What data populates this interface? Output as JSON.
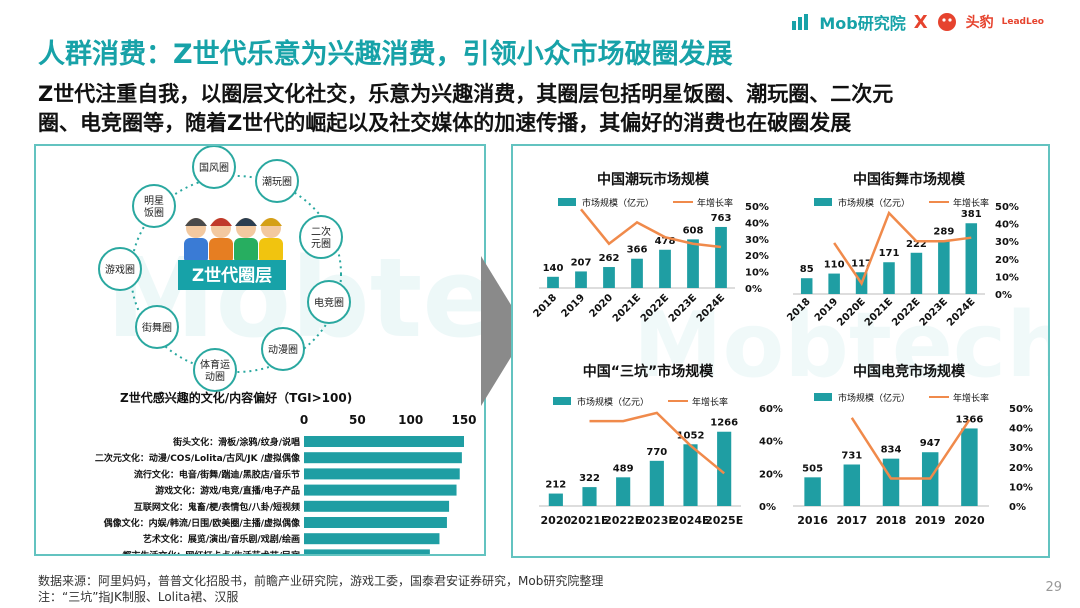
{
  "page": {
    "title": "人群消费：Z世代乐意为兴趣消费，引领小众市场破圈发展",
    "subtitle_line1": "Z世代注重自我，以圈层文化社交，乐意为兴趣消费，其圈层包括明星饭圈、潮玩圈、二次元",
    "subtitle_line2": "圈、电竞圈等，随着Z世代的崛起以及社交媒体的加速传播，其偏好的消费也在破圈发展",
    "brand_mob": "Mob研究院",
    "brand_x": "X",
    "brand_toutiao": "头豹",
    "brand_leadleo": "LeadLeo",
    "watermark": "Mobtech",
    "source": "数据来源：阿里妈妈，普普文化招股书，前瞻产业研究院，游戏工委，国泰君安证券研究，Mob研究院整理",
    "note": "注：“三坑”指JK制服、Lolita裙、汉服",
    "page_number": "29"
  },
  "colors": {
    "teal": "#17a2a8",
    "bar": "#1f9ea3",
    "line": "#f08a4b",
    "panel_border": "#63c3c0",
    "circle_border": "#2aa8a0"
  },
  "circles": {
    "center_label": "Z世代圈层",
    "items": [
      "国风圈",
      "潮玩圈",
      "二次元圈",
      "电竞圈",
      "动漫圈",
      "体育运动圈",
      "街舞圈",
      "游戏圈",
      "明星饭圈"
    ]
  },
  "chart_data": [
    {
      "type": "bar",
      "title": "Z世代感兴趣的文化/内容偏好（TGI>100)",
      "orientation": "horizontal",
      "categories": [
        "街头文化：滑板/涂鸦/纹身/说唱",
        "二次元文化：动漫/COS/Lolita/古风/JK /虚拟偶像",
        "流行文化：电音/街舞/踹迪/黑胶店/音乐节",
        "游戏文化：游戏/电竞/直播/电子产品",
        "互联网文化：鬼畜/梗/表情包/八卦/短视频",
        "偶像文化：内娱/韩流/日围/欧美圈/主播/虚拟偶像",
        "艺术文化：展览/演出/音乐剧/戏剧/绘画",
        "都市生活文化：网红打卡点/生活艺术节/民宿"
      ],
      "values": [
        150,
        148,
        146,
        143,
        136,
        134,
        127,
        118
      ],
      "xticks": [
        "0",
        "50",
        "100",
        "150"
      ],
      "xlim": [
        0,
        150
      ]
    },
    {
      "type": "bar+line",
      "title": "中国潮玩市场规模",
      "categories": [
        "2018",
        "2019",
        "2020",
        "2021E",
        "2022E",
        "2023E",
        "2024E"
      ],
      "series": [
        {
          "name": "市场规模（亿元）",
          "type": "bar",
          "values": [
            140,
            207,
            262,
            366,
            478,
            608,
            763
          ]
        },
        {
          "name": "年增长率",
          "type": "line",
          "axis": "right",
          "values": [
            null,
            48,
            27,
            40,
            31,
            27,
            25
          ]
        }
      ],
      "y2ticks": [
        "50%",
        "40%",
        "30%",
        "20%",
        "10%",
        "0%"
      ],
      "y2lim": [
        0,
        50
      ]
    },
    {
      "type": "bar+line",
      "title": "中国街舞市场规模",
      "categories": [
        "2018",
        "2019",
        "2020E",
        "2021E",
        "2022E",
        "2023E",
        "2024E"
      ],
      "series": [
        {
          "name": "市场规模（亿元）",
          "type": "bar",
          "values": [
            85,
            110,
            117,
            171,
            222,
            289,
            381
          ]
        },
        {
          "name": "年增长率",
          "type": "line",
          "axis": "right",
          "values": [
            null,
            29,
            6,
            46,
            30,
            30,
            32
          ]
        }
      ],
      "y2ticks": [
        "50%",
        "40%",
        "30%",
        "20%",
        "10%",
        "0%"
      ],
      "y2lim": [
        0,
        50
      ]
    },
    {
      "type": "bar+line",
      "title": "中国“三坑”市场规模",
      "categories": [
        "2020",
        "2021E",
        "2022E",
        "2023E",
        "2024E",
        "2025E"
      ],
      "series": [
        {
          "name": "市场规模（亿元）",
          "type": "bar",
          "values": [
            212,
            322,
            489,
            770,
            1052,
            1266
          ]
        },
        {
          "name": "年增长率",
          "type": "line",
          "axis": "right",
          "values": [
            null,
            52,
            52,
            57,
            37,
            20
          ]
        }
      ],
      "y2ticks": [
        "60%",
        "40%",
        "20%",
        "0%"
      ],
      "y2lim": [
        0,
        60
      ]
    },
    {
      "type": "bar+line",
      "title": "中国电竞市场规模",
      "categories": [
        "2016",
        "2017",
        "2018",
        "2019",
        "2020"
      ],
      "series": [
        {
          "name": "市场规模（亿元）",
          "type": "bar",
          "values": [
            505,
            731,
            834,
            947,
            1366
          ]
        },
        {
          "name": "年增长率",
          "type": "line",
          "axis": "right",
          "values": [
            null,
            45,
            14,
            14,
            44
          ]
        }
      ],
      "y2ticks": [
        "50%",
        "40%",
        "30%",
        "20%",
        "10%",
        "0%"
      ],
      "y2lim": [
        0,
        50
      ]
    }
  ]
}
